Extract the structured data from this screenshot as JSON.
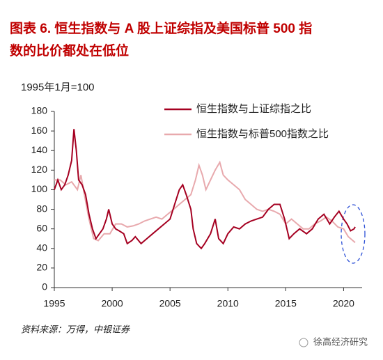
{
  "chart_data": {
    "type": "line",
    "title": [
      "图表 6.  恒生指数与 A 股上证综指及美国标普 500 指",
      "数的比价都处在低位"
    ],
    "subtitle": "1995年1月=100",
    "source": "资料来源：万得，中银证券",
    "watermark": "徐高经济研究",
    "xlim": [
      1995,
      2021.6
    ],
    "xticks": [
      1995,
      2000,
      2005,
      2010,
      2015,
      2020
    ],
    "ylim": [
      0,
      180
    ],
    "yticks": [
      0,
      20,
      40,
      60,
      80,
      100,
      120,
      140,
      160,
      180
    ],
    "grid": false,
    "series": [
      {
        "name": "恒生指数与上证综指之比",
        "color": "#a50021",
        "x": [
          1995.0,
          1995.3,
          1995.6,
          1995.9,
          1996.2,
          1996.5,
          1996.7,
          1996.9,
          1997.1,
          1997.4,
          1997.7,
          1998.0,
          1998.3,
          1998.6,
          1998.9,
          1999.2,
          1999.5,
          1999.7,
          2000.0,
          2000.3,
          2000.6,
          2001.0,
          2001.3,
          2001.7,
          2002.0,
          2002.5,
          2003.0,
          2003.5,
          2004.0,
          2004.5,
          2005.0,
          2005.4,
          2005.8,
          2006.1,
          2006.4,
          2006.8,
          2007.0,
          2007.3,
          2007.7,
          2008.0,
          2008.5,
          2008.9,
          2009.2,
          2009.6,
          2010.0,
          2010.5,
          2011.0,
          2011.5,
          2012.0,
          2012.5,
          2013.0,
          2013.5,
          2014.0,
          2014.5,
          2014.9,
          2015.3,
          2015.7,
          2016.2,
          2016.8,
          2017.3,
          2017.8,
          2018.3,
          2018.8,
          2019.2,
          2019.6,
          2020.0,
          2020.3,
          2020.6,
          2020.9,
          2021.0
        ],
        "values": [
          100,
          110,
          100,
          105,
          115,
          130,
          162,
          140,
          110,
          105,
          95,
          75,
          60,
          50,
          55,
          60,
          70,
          80,
          65,
          60,
          58,
          55,
          45,
          48,
          52,
          45,
          50,
          55,
          60,
          65,
          70,
          85,
          100,
          105,
          95,
          80,
          60,
          45,
          40,
          45,
          55,
          70,
          50,
          45,
          55,
          62,
          60,
          65,
          68,
          70,
          72,
          80,
          85,
          85,
          70,
          50,
          55,
          60,
          55,
          60,
          70,
          75,
          65,
          72,
          78,
          70,
          65,
          58,
          60,
          62
        ]
      },
      {
        "name": "恒生指数与标普500指数之比",
        "color": "#e8a9ad",
        "x": [
          1995.0,
          1995.5,
          1996.0,
          1996.5,
          1997.0,
          1997.3,
          1997.6,
          1998.0,
          1998.4,
          1998.8,
          1999.3,
          1999.8,
          2000.3,
          2000.8,
          2001.3,
          2001.8,
          2002.3,
          2002.8,
          2003.3,
          2003.8,
          2004.3,
          2004.8,
          2005.3,
          2005.8,
          2006.3,
          2006.8,
          2007.2,
          2007.5,
          2007.8,
          2008.1,
          2008.5,
          2008.9,
          2009.3,
          2009.6,
          2010.0,
          2010.5,
          2011.0,
          2011.5,
          2012.0,
          2012.5,
          2013.0,
          2013.5,
          2014.0,
          2014.5,
          2015.0,
          2015.5,
          2016.0,
          2016.5,
          2017.0,
          2017.5,
          2018.0,
          2018.5,
          2019.0,
          2019.5,
          2020.0,
          2020.4,
          2020.8,
          2021.0
        ],
        "values": [
          110,
          110,
          105,
          108,
          100,
          115,
          95,
          70,
          50,
          48,
          55,
          55,
          65,
          65,
          62,
          63,
          65,
          68,
          70,
          72,
          70,
          75,
          80,
          85,
          90,
          95,
          110,
          125,
          115,
          100,
          110,
          120,
          128,
          115,
          110,
          105,
          100,
          90,
          85,
          80,
          78,
          80,
          78,
          75,
          65,
          70,
          65,
          60,
          60,
          65,
          68,
          72,
          68,
          62,
          60,
          52,
          48,
          46
        ]
      }
    ]
  }
}
